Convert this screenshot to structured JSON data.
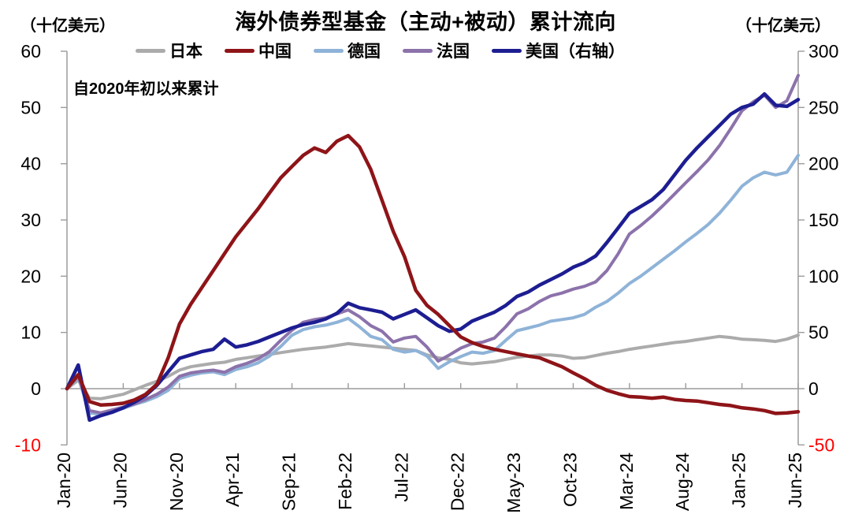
{
  "header": {
    "title": "海外债券型基金（主动+被动）累计流向",
    "left_unit": "（十亿美元）",
    "right_unit": "（十亿美元）"
  },
  "annotation": {
    "text": "自2020年初以来累计"
  },
  "chart_data": {
    "type": "line",
    "title": "海外债券型基金（主动+被动）累计流向",
    "annotation": "自2020年初以来累计",
    "months": 66,
    "x_range": [
      "Jan-20",
      "Jun-25"
    ],
    "x_tick_labels": [
      "Jan-20",
      "Jun-20",
      "Nov-20",
      "Apr-21",
      "Sep-21",
      "Feb-22",
      "Jul-22",
      "Dec-22",
      "May-23",
      "Oct-23",
      "Mar-24",
      "Aug-24",
      "Jan-25",
      "Jun-25"
    ],
    "x_tick_step_months": 5,
    "left_axis": {
      "unit": "（十亿美元）",
      "min": -10,
      "max": 60,
      "ticks": [
        60,
        50,
        40,
        30,
        20,
        10,
        0,
        -10
      ]
    },
    "right_axis": {
      "unit": "（十亿美元）",
      "min": -50,
      "max": 300,
      "ticks": [
        300,
        250,
        200,
        150,
        100,
        50,
        0,
        -50
      ]
    },
    "grid": "zero-baseline-only",
    "legend_position": "top-center",
    "axis_color": "#9b9b9b",
    "text_color": "#000000",
    "negative_tick_color": "#ff0000",
    "series": [
      {
        "key": "japan",
        "name": "日本",
        "axis": "left",
        "color": "#ababab",
        "values": [
          0,
          1.5,
          -1.7,
          -1.8,
          -1.4,
          -1.0,
          -0.2,
          0.6,
          1.3,
          2.2,
          3.3,
          3.9,
          4.2,
          4.5,
          4.7,
          5.2,
          5.5,
          5.8,
          6.1,
          6.4,
          6.7,
          7.0,
          7.2,
          7.4,
          7.7,
          8.0,
          7.8,
          7.6,
          7.4,
          7.2,
          7.0,
          6.8,
          6.0,
          5.5,
          5.2,
          4.6,
          4.4,
          4.6,
          4.8,
          5.2,
          5.6,
          5.8,
          6.0,
          6.0,
          5.8,
          5.4,
          5.5,
          5.9,
          6.3,
          6.6,
          7.0,
          7.3,
          7.6,
          7.9,
          8.2,
          8.4,
          8.7,
          9.0,
          9.3,
          9.1,
          8.8,
          8.7,
          8.6,
          8.4,
          8.8,
          9.5
        ]
      },
      {
        "key": "china",
        "name": "中国",
        "axis": "left",
        "color": "#8e1418",
        "values": [
          0,
          2.5,
          -2.3,
          -2.9,
          -2.8,
          -2.6,
          -2.0,
          -1.0,
          0.8,
          5.5,
          11.5,
          15.0,
          18.0,
          21.0,
          24.0,
          27.0,
          29.5,
          32.0,
          34.8,
          37.5,
          39.5,
          41.5,
          42.8,
          42.0,
          44.0,
          45.0,
          43.0,
          39.0,
          33.5,
          28.0,
          23.5,
          17.5,
          14.8,
          13.2,
          11.2,
          9.2,
          8.2,
          7.5,
          7.0,
          6.6,
          6.2,
          5.8,
          5.5,
          4.7,
          3.9,
          2.8,
          1.8,
          0.6,
          -0.3,
          -0.9,
          -1.4,
          -1.5,
          -1.7,
          -1.5,
          -1.9,
          -2.1,
          -2.2,
          -2.5,
          -2.8,
          -3.0,
          -3.4,
          -3.6,
          -3.9,
          -4.4,
          -4.3,
          -4.1
        ]
      },
      {
        "key": "germany",
        "name": "德国",
        "axis": "left",
        "color": "#8fb3d8",
        "values": [
          0,
          2.0,
          -4.3,
          -4.6,
          -4.0,
          -3.5,
          -2.8,
          -2.2,
          -1.4,
          -0.3,
          1.8,
          2.4,
          2.8,
          3.0,
          2.5,
          3.4,
          3.9,
          4.6,
          5.8,
          7.5,
          9.5,
          10.5,
          11.0,
          11.3,
          11.8,
          12.5,
          11.0,
          9.3,
          8.7,
          7.0,
          6.5,
          6.8,
          5.8,
          3.6,
          4.8,
          5.7,
          6.5,
          6.3,
          6.8,
          8.6,
          10.3,
          10.8,
          11.3,
          12.0,
          12.3,
          12.6,
          13.2,
          14.5,
          15.5,
          17.0,
          18.7,
          20.0,
          21.5,
          23.0,
          24.5,
          26.1,
          27.6,
          29.2,
          31.2,
          33.5,
          36.0,
          37.5,
          38.5,
          38.0,
          38.5,
          41.5
        ]
      },
      {
        "key": "france",
        "name": "法国",
        "axis": "left",
        "color": "#8c72ab",
        "values": [
          0,
          2.2,
          -3.9,
          -4.3,
          -3.8,
          -3.3,
          -2.7,
          -1.9,
          -1.0,
          0.3,
          2.2,
          2.8,
          3.1,
          3.3,
          2.9,
          3.9,
          4.5,
          5.3,
          6.6,
          8.6,
          10.4,
          11.8,
          12.3,
          12.6,
          13.3,
          14.0,
          12.8,
          11.2,
          10.2,
          8.3,
          9.0,
          9.3,
          7.4,
          4.9,
          6.0,
          7.2,
          8.0,
          8.3,
          9.0,
          11.0,
          13.3,
          14.2,
          15.5,
          16.5,
          17.0,
          17.7,
          18.2,
          19.0,
          21.0,
          24.0,
          27.5,
          29.0,
          30.7,
          32.6,
          34.6,
          36.6,
          38.6,
          40.7,
          43.2,
          46.2,
          49.4,
          51.0,
          52.2,
          50.0,
          51.2,
          55.7
        ]
      },
      {
        "key": "us",
        "name": "美国（右轴）",
        "axis": "right",
        "color": "#1d1d92",
        "values": [
          0,
          21,
          -28,
          -24,
          -21,
          -17,
          -12,
          -6,
          3,
          15,
          27,
          30,
          33,
          35,
          44,
          37,
          39,
          42,
          46,
          50,
          54,
          57,
          59,
          62,
          67,
          76,
          72,
          70,
          68,
          62,
          66,
          70,
          63,
          56,
          51,
          53,
          60,
          64,
          68,
          74,
          82,
          86,
          92,
          97,
          102,
          108,
          112,
          118,
          130,
          143,
          156,
          162,
          168,
          177,
          190,
          203,
          214,
          224,
          234,
          244,
          250,
          253,
          262,
          252,
          251,
          257
        ]
      }
    ]
  }
}
